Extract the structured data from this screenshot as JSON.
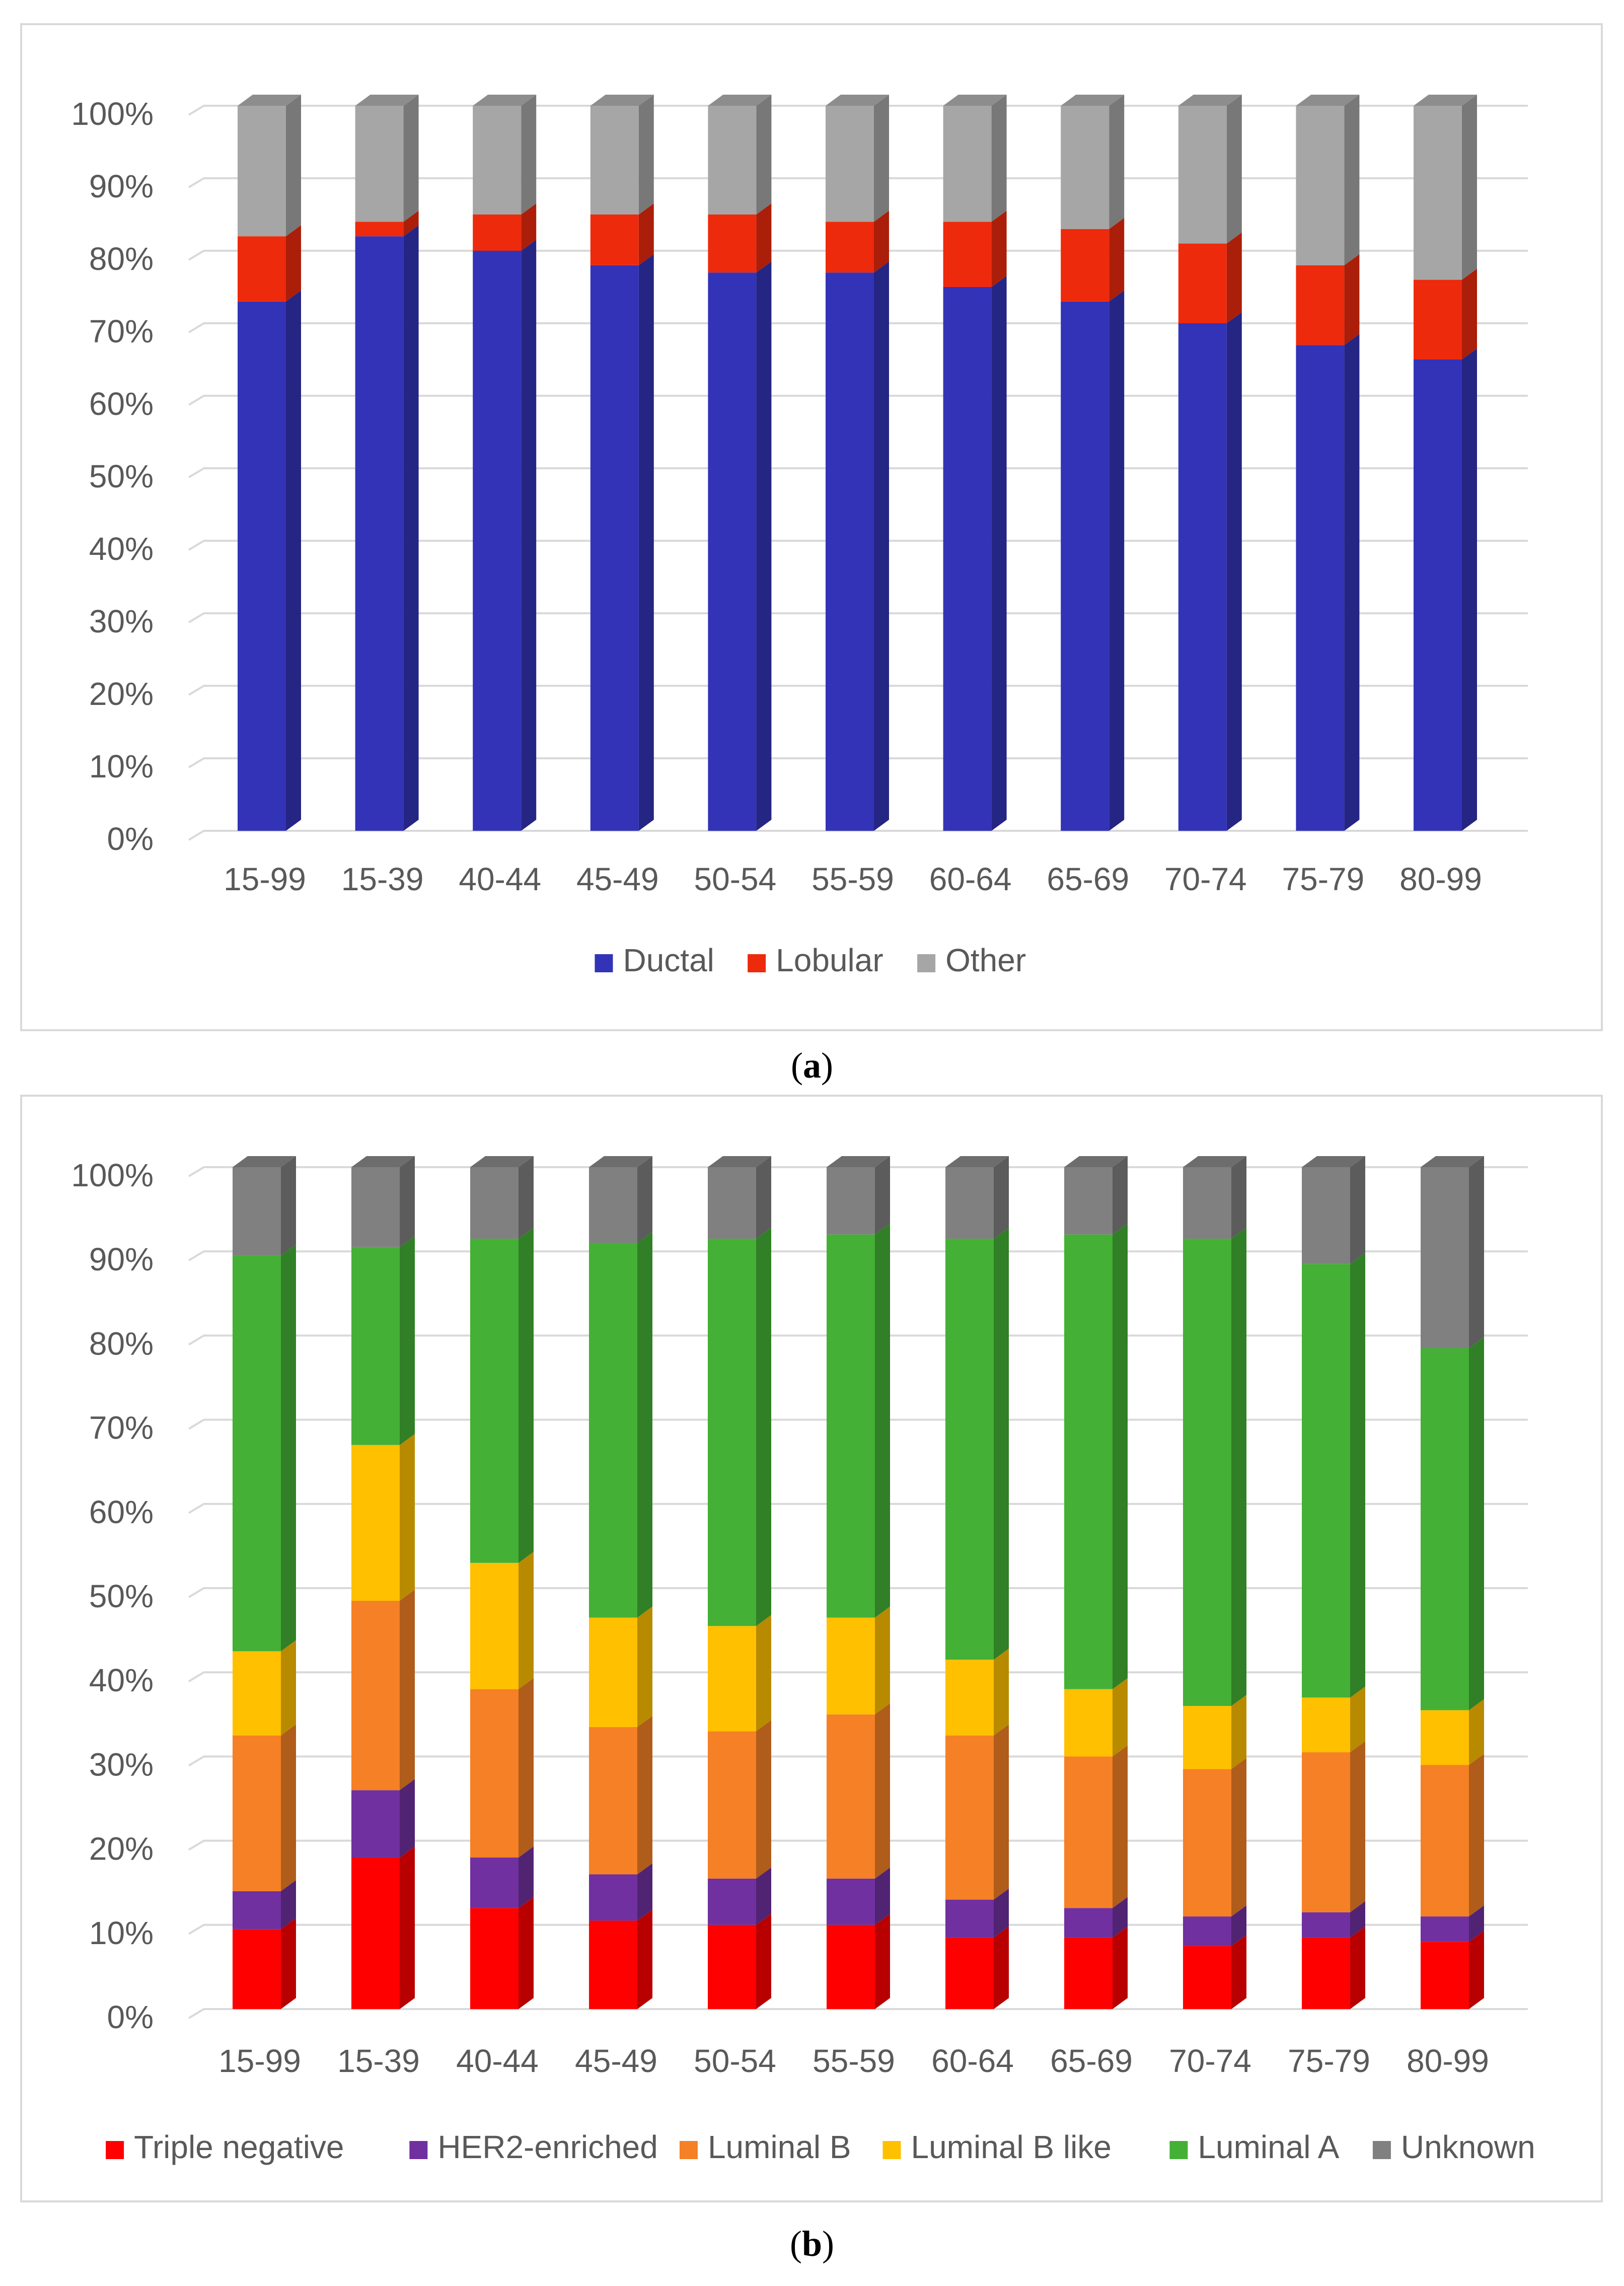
{
  "chart_data": [
    {
      "type": "bar",
      "stacked": true,
      "percent_stacked": true,
      "style": "3d-column",
      "caption": "a",
      "categories": [
        "15-99",
        "15-39",
        "40-44",
        "45-49",
        "50-54",
        "55-59",
        "60-64",
        "65-69",
        "70-74",
        "75-79",
        "80-99"
      ],
      "y_ticks": [
        "0%",
        "10%",
        "20%",
        "30%",
        "40%",
        "50%",
        "60%",
        "70%",
        "80%",
        "90%",
        "100%"
      ],
      "ylim": [
        0,
        100
      ],
      "legend_position": "bottom",
      "series": [
        {
          "name": "Ductal",
          "color": "#3333b8",
          "values": [
            73,
            82,
            80,
            78,
            77,
            77,
            75,
            73,
            70,
            67,
            65
          ]
        },
        {
          "name": "Lobular",
          "color": "#ee2a0c",
          "values": [
            9,
            2,
            5,
            7,
            8,
            7,
            9,
            10,
            11,
            11,
            11
          ]
        },
        {
          "name": "Other",
          "color": "#a6a6a6",
          "values": [
            18,
            16,
            15,
            15,
            15,
            16,
            16,
            17,
            19,
            22,
            24
          ]
        }
      ]
    },
    {
      "type": "bar",
      "stacked": true,
      "percent_stacked": true,
      "style": "3d-column",
      "caption": "b",
      "categories": [
        "15-99",
        "15-39",
        "40-44",
        "45-49",
        "50-54",
        "55-59",
        "60-64",
        "65-69",
        "70-74",
        "75-79",
        "80-99"
      ],
      "y_ticks": [
        "0%",
        "10%",
        "20%",
        "30%",
        "40%",
        "50%",
        "60%",
        "70%",
        "80%",
        "90%",
        "100%"
      ],
      "ylim": [
        0,
        100
      ],
      "legend_position": "bottom",
      "series": [
        {
          "name": "Triple negative",
          "color": "#ff0000",
          "values": [
            9.5,
            18,
            12,
            10.5,
            10,
            10,
            8.5,
            8.5,
            7.5,
            8.5,
            8
          ]
        },
        {
          "name": "HER2-enriched",
          "color": "#7030a0",
          "values": [
            4.5,
            8,
            6,
            5.5,
            5.5,
            5.5,
            4.5,
            3.5,
            3.5,
            3,
            3
          ]
        },
        {
          "name": "Luminal B",
          "color": "#f58025",
          "values": [
            18.5,
            22.5,
            20,
            17.5,
            17.5,
            19.5,
            19.5,
            18,
            17.5,
            19,
            18
          ]
        },
        {
          "name": "Luminal B like",
          "color": "#ffc000",
          "values": [
            10,
            18.5,
            15,
            13,
            12.5,
            11.5,
            9,
            8,
            7.5,
            6.5,
            6.5
          ]
        },
        {
          "name": "Luminal A",
          "color": "#44b035",
          "values": [
            47,
            23.5,
            38.5,
            44.5,
            46,
            45.5,
            50,
            54,
            55.5,
            51.5,
            43
          ]
        },
        {
          "name": "Unknown",
          "color": "#808080",
          "values": [
            10.5,
            9.5,
            8.5,
            9,
            8.5,
            8,
            8.5,
            8,
            8.5,
            11.5,
            21.5
          ]
        }
      ]
    }
  ]
}
